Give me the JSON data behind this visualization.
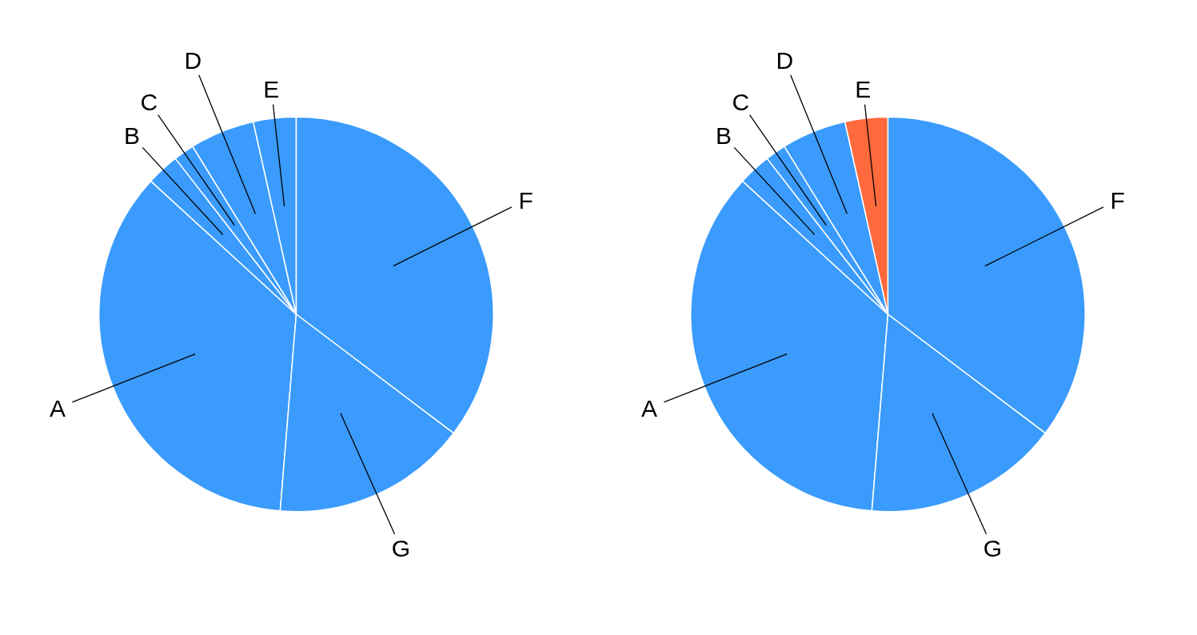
{
  "chart_data": [
    {
      "type": "pie",
      "categories": [
        "A",
        "B",
        "C",
        "D",
        "E",
        "F",
        "G"
      ],
      "values": [
        35.5,
        2.7,
        1.7,
        5.3,
        3.5,
        35.3,
        16.0
      ],
      "colors": [
        "#3a9bfc",
        "#3a9bfc",
        "#3a9bfc",
        "#3a9bfc",
        "#3a9bfc",
        "#3a9bfc",
        "#3a9bfc"
      ]
    },
    {
      "type": "pie",
      "categories": [
        "A",
        "B",
        "C",
        "D",
        "E",
        "F",
        "G"
      ],
      "values": [
        35.5,
        2.7,
        1.7,
        5.3,
        3.5,
        35.3,
        16.0
      ],
      "colors": [
        "#3a9bfc",
        "#3a9bfc",
        "#3a9bfc",
        "#3a9bfc",
        "#ff6a3d",
        "#3a9bfc",
        "#3a9bfc"
      ]
    }
  ]
}
